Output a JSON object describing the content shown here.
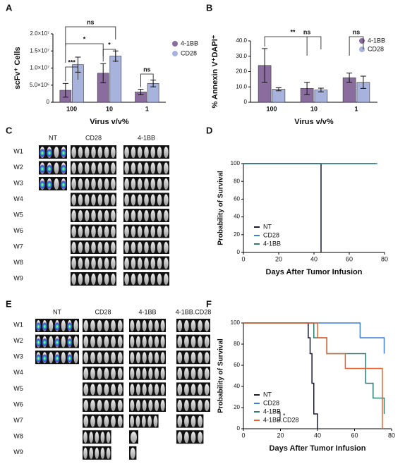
{
  "chart_data": [
    {
      "type": "bar",
      "panel": "A",
      "ylabel": "scFv⁺ Cells",
      "xlabel": "Virus  v/v%",
      "categories": [
        "100",
        "10",
        "1"
      ],
      "series": [
        {
          "name": "4-1BB",
          "color": "#8a6c9e",
          "values": [
            3500000,
            8500000,
            3000000
          ],
          "errors": [
            2000000,
            2800000,
            800000
          ]
        },
        {
          "name": "CD28",
          "color": "#a7b2dd",
          "values": [
            11000000,
            13500000,
            5500000
          ],
          "errors": [
            2200000,
            1500000,
            1000000
          ]
        }
      ],
      "ylim": [
        0,
        20000000
      ],
      "yticks": [
        0,
        {
          "value": 5000000,
          "label": "5.0×10⁶"
        },
        {
          "value": 10000000,
          "label": "1.0×10⁷"
        },
        {
          "value": 15000000,
          "label": "1.5×10⁷"
        },
        {
          "value": 20000000,
          "label": "2.0×10⁷"
        }
      ],
      "annotations": [
        "ns",
        "*",
        "***",
        "*",
        "ns"
      ],
      "legend": "upper-right-outside"
    },
    {
      "type": "bar",
      "panel": "B",
      "ylabel": "% Annexin V⁺DAPI⁺",
      "xlabel": "Virus  v/v%",
      "categories": [
        "100",
        "10",
        "1"
      ],
      "series": [
        {
          "name": "4-1BB",
          "color": "#8a6c9e",
          "values": [
            24,
            9,
            16
          ],
          "errors": [
            11,
            4,
            3
          ]
        },
        {
          "name": "CD28",
          "color": "#a7b2dd",
          "values": [
            8.5,
            8,
            13
          ],
          "errors": [
            1,
            1.2,
            4
          ]
        }
      ],
      "ylim": [
        0,
        40
      ],
      "yticks": [
        0,
        {
          "value": 10,
          "label": "10.0"
        },
        {
          "value": 20,
          "label": "20.0"
        },
        {
          "value": 30,
          "label": "30.0"
        },
        {
          "value": 40,
          "label": "40.0"
        }
      ],
      "annotations": [
        "**",
        "ns",
        "ns"
      ],
      "legend": "upper-right"
    },
    {
      "type": "step",
      "panel": "D",
      "ylabel": "Probability of Survival",
      "xlabel": "Days After Tumor Infusion",
      "series": [
        {
          "name": "NT",
          "color": "#1a1a3a",
          "x": [
            0,
            44,
            44
          ],
          "values": [
            100,
            100,
            0
          ]
        },
        {
          "name": "CD28",
          "color": "#3c7fd6",
          "x": [
            0,
            75,
            76
          ],
          "values": [
            100,
            100,
            100
          ]
        },
        {
          "name": "4-1BB",
          "color": "#2e7d73",
          "x": [
            0,
            75
          ],
          "values": [
            100,
            100
          ]
        }
      ],
      "xlim": [
        0,
        80
      ],
      "xticks": [
        0,
        20,
        40,
        60,
        80
      ],
      "ylim": [
        0,
        100
      ],
      "yticks": [
        0,
        20,
        40,
        60,
        80,
        100
      ],
      "annotations": [],
      "legend": "lower-left"
    },
    {
      "type": "step",
      "panel": "F",
      "ylabel": "Probability of Survival",
      "xlabel": "Days After Tumor  Infusion",
      "series": [
        {
          "name": "NT",
          "color": "#1a1a3a",
          "x": [
            0,
            35,
            36,
            37,
            38,
            40
          ],
          "values": [
            100,
            86,
            71,
            43,
            14,
            0
          ]
        },
        {
          "name": "CD28",
          "color": "#3c7fd6",
          "x": [
            0,
            63,
            76
          ],
          "values": [
            100,
            86,
            71
          ]
        },
        {
          "name": "4-1BB",
          "color": "#2e7d73",
          "x": [
            0,
            38,
            45,
            66,
            70,
            76
          ],
          "values": [
            100,
            86,
            71,
            43,
            29,
            14
          ]
        },
        {
          "name": "4-1BB.CD28",
          "color": "#e8622c",
          "x": [
            0,
            40,
            45,
            55,
            75
          ],
          "values": [
            100,
            86,
            71,
            57,
            0
          ]
        }
      ],
      "xlim": [
        0,
        80
      ],
      "xticks": [
        0,
        20,
        40,
        60,
        80
      ],
      "ylim": [
        0,
        100
      ],
      "yticks": [
        0,
        20,
        40,
        60,
        80,
        100
      ],
      "annotations": [
        "*"
      ],
      "legend": "lower-left"
    }
  ],
  "panels": [
    {
      "label": "C",
      "columns": [
        "NT",
        "CD28",
        "4-1BB"
      ],
      "rows": [
        "W1",
        "W2",
        "W3",
        "W4",
        "W5",
        "W6",
        "W7",
        "W8",
        "W9"
      ]
    },
    {
      "label": "E",
      "columns": [
        "NT",
        "CD28",
        "4-1BB",
        "4-1BB.CD28"
      ],
      "rows": [
        "W1",
        "W2",
        "W3",
        "W4",
        "W5",
        "W6",
        "W7",
        "W8",
        "W9"
      ]
    }
  ]
}
